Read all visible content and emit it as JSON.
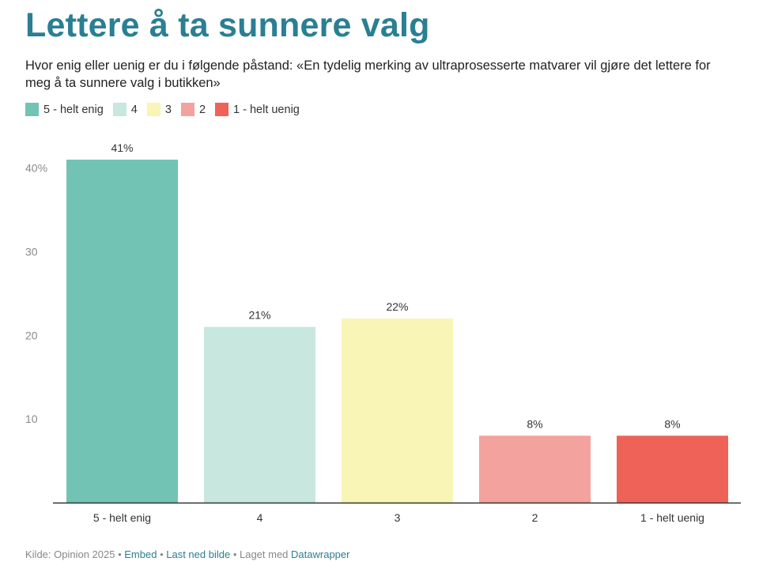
{
  "header": {
    "title": "Lettere å ta sunnere valg",
    "subtitle": "Hvor enig eller uenig er du i følgende påstand: «En tydelig merking av ultraprosesserte matvarer vil gjøre det lettere for meg å ta sunnere valg i butikken»"
  },
  "legend": [
    {
      "label": "5 - helt enig",
      "color": "#72c3b4"
    },
    {
      "label": "4",
      "color": "#c7e7df"
    },
    {
      "label": "3",
      "color": "#f8f5b6"
    },
    {
      "label": "2",
      "color": "#f3a29e"
    },
    {
      "label": "1 - helt uenig",
      "color": "#ef6258"
    }
  ],
  "chart_data": {
    "type": "bar",
    "categories": [
      "5 - helt enig",
      "4",
      "3",
      "2",
      "1 - helt uenig"
    ],
    "values": [
      41,
      21,
      22,
      8,
      8
    ],
    "data_labels": [
      "41%",
      "21%",
      "22%",
      "8%",
      "8%"
    ],
    "colors": [
      "#72c3b4",
      "#c7e7df",
      "#f8f5b6",
      "#f3a29e",
      "#ef6258"
    ],
    "yticks": [
      10,
      20,
      30,
      40
    ],
    "ytick_labels": [
      "10",
      "20",
      "30",
      "40%"
    ],
    "ylim": [
      0,
      41
    ],
    "grid": false,
    "legend_position": "top-left"
  },
  "footer": {
    "source": "Kilde: Opinion 2025",
    "sep1": " • ",
    "embed": "Embed",
    "sep2": " • ",
    "download": "Last ned bilde",
    "sep3": " • Laget med ",
    "tool": "Datawrapper"
  }
}
